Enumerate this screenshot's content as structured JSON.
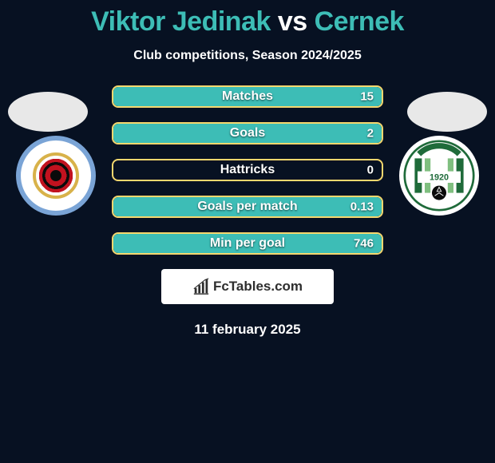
{
  "title": {
    "player1": "Viktor Jedinak",
    "vs": "vs",
    "player2": "Cernek"
  },
  "subtitle": "Club competitions, Season 2024/2025",
  "colors": {
    "background": "#071122",
    "accent_teal": "#3dbdb6",
    "accent_yellow": "#f5d76e",
    "text": "#ffffff",
    "brand_bg": "#ffffff",
    "brand_text": "#2e2e2e"
  },
  "stats": [
    {
      "label": "Matches",
      "value_right": "15",
      "fill_pct": 100
    },
    {
      "label": "Goals",
      "value_right": "2",
      "fill_pct": 100
    },
    {
      "label": "Hattricks",
      "value_right": "0",
      "fill_pct": 0
    },
    {
      "label": "Goals per match",
      "value_right": "0.13",
      "fill_pct": 100
    },
    {
      "label": "Min per goal",
      "value_right": "746",
      "fill_pct": 100
    }
  ],
  "brand": "FcTables.com",
  "date": "11 february 2025",
  "badges": {
    "left": {
      "name": "mfk-ruzomberok-badge"
    },
    "right": {
      "name": "mfk-skalica-badge",
      "year": "1920"
    }
  }
}
